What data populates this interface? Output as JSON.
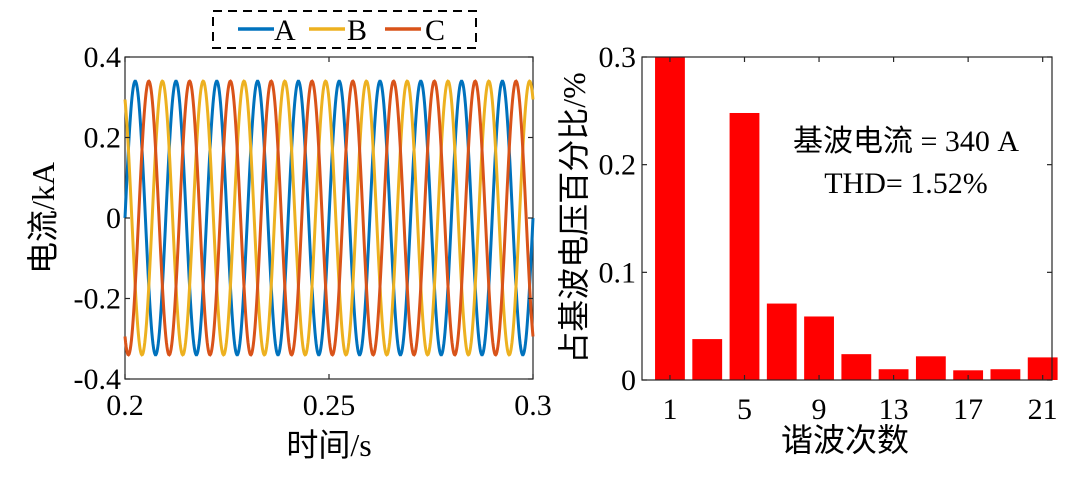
{
  "chart_data": [
    {
      "type": "line",
      "title": "",
      "xlabel": "时间/s",
      "ylabel": "电流/kA",
      "xlim": [
        0.2,
        0.3
      ],
      "ylim": [
        -0.4,
        0.4
      ],
      "x_ticks": [
        0.2,
        0.25,
        0.3
      ],
      "x_tick_labels": [
        "0.2",
        "0.25",
        "0.3"
      ],
      "y_ticks": [
        -0.4,
        -0.2,
        0,
        0.2,
        0.4
      ],
      "y_tick_labels": [
        "-0.4",
        "-0.2",
        "0",
        "0.2",
        "0.4"
      ],
      "grid": false,
      "legend": {
        "placement": "top",
        "entries": [
          "A",
          "B",
          "C"
        ]
      },
      "series": [
        {
          "name": "A",
          "color": "#0072BD",
          "amplitude": 0.34,
          "frequency_hz": 100,
          "phase_deg": 0
        },
        {
          "name": "B",
          "color": "#EDB120",
          "amplitude": 0.34,
          "frequency_hz": 100,
          "phase_deg": 120
        },
        {
          "name": "C",
          "color": "#D95319",
          "amplitude": 0.34,
          "frequency_hz": 100,
          "phase_deg": -120
        }
      ]
    },
    {
      "type": "bar",
      "title": "",
      "xlabel": "谐波次数",
      "ylabel": "占基波电压百分比/%",
      "ylim": [
        0,
        0.3
      ],
      "xlim": [
        -0.5,
        21.5
      ],
      "x": [
        1,
        3,
        5,
        7,
        9,
        11,
        13,
        15,
        17,
        19,
        21
      ],
      "values": [
        0.3,
        0.038,
        0.248,
        0.071,
        0.059,
        0.024,
        0.01,
        0.022,
        0.009,
        0.01,
        0.021
      ],
      "x_ticks": [
        1,
        5,
        9,
        13,
        17,
        21
      ],
      "x_tick_labels": [
        "1",
        "5",
        "9",
        "13",
        "17",
        "21"
      ],
      "y_ticks": [
        0,
        0.1,
        0.2,
        0.3
      ],
      "y_tick_labels": [
        "0",
        "0.1",
        "0.2",
        "0.3"
      ],
      "bar_color": "#FF0000",
      "grid": false,
      "annotations": [
        "基波电流 = 340 A",
        "THD= 1.52%"
      ]
    }
  ]
}
